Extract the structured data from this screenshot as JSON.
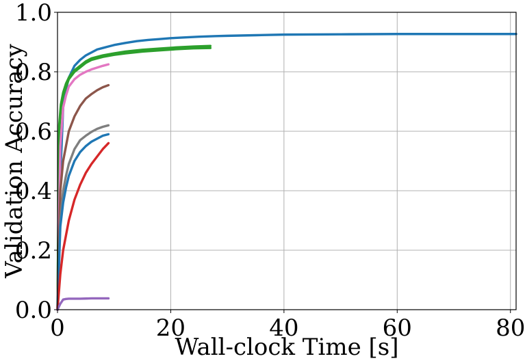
{
  "chart_data": {
    "type": "line",
    "title": "",
    "xlabel": "Wall-clock Time [s]",
    "ylabel": "Validation Accuracy",
    "xlim": [
      0,
      81
    ],
    "ylim": [
      0.0,
      1.0
    ],
    "xticks": [
      0,
      20,
      40,
      60,
      80
    ],
    "yticks": [
      0.0,
      0.2,
      0.4,
      0.6,
      0.8,
      1.0
    ],
    "xtick_labels": [
      "0",
      "20",
      "40",
      "60",
      "80"
    ],
    "ytick_labels": [
      "0.0",
      "0.2",
      "0.4",
      "0.6",
      "0.8",
      "1.0"
    ],
    "grid": true,
    "legend": false,
    "series": [
      {
        "color": "#1f77b4",
        "x": [
          0,
          0.5,
          1,
          1.5,
          2,
          3,
          4,
          5,
          6,
          7,
          8,
          9,
          10,
          12,
          14,
          16,
          18,
          20,
          22,
          25,
          28,
          30,
          35,
          40,
          50,
          60,
          70,
          81
        ],
        "y": [
          0,
          0.45,
          0.68,
          0.74,
          0.78,
          0.82,
          0.84,
          0.855,
          0.865,
          0.875,
          0.88,
          0.885,
          0.89,
          0.897,
          0.903,
          0.907,
          0.91,
          0.913,
          0.915,
          0.918,
          0.92,
          0.921,
          0.923,
          0.925,
          0.926,
          0.927,
          0.927,
          0.927
        ]
      },
      {
        "color": "#2ca02c",
        "x": [
          0,
          0.3,
          0.6,
          1,
          1.5,
          2,
          3,
          4,
          5,
          6,
          8,
          10,
          12,
          15,
          18,
          21,
          24,
          27
        ],
        "y": [
          0,
          0.6,
          0.68,
          0.72,
          0.75,
          0.775,
          0.8,
          0.815,
          0.83,
          0.84,
          0.85,
          0.857,
          0.862,
          0.868,
          0.872,
          0.876,
          0.879,
          0.88
        ]
      },
      {
        "color": "#2ca02c",
        "x": [
          0,
          0.3,
          0.6,
          1,
          1.5,
          2,
          3,
          4,
          5,
          6,
          8,
          10,
          12,
          15,
          18,
          21,
          24,
          27
        ],
        "y": [
          0,
          0.62,
          0.69,
          0.73,
          0.76,
          0.78,
          0.805,
          0.82,
          0.835,
          0.845,
          0.855,
          0.862,
          0.868,
          0.874,
          0.878,
          0.882,
          0.885,
          0.887
        ]
      },
      {
        "color": "#e377c2",
        "x": [
          0,
          0.5,
          1,
          1.5,
          2,
          3,
          4,
          5,
          6,
          7,
          8,
          9
        ],
        "y": [
          0,
          0.55,
          0.68,
          0.72,
          0.75,
          0.775,
          0.79,
          0.8,
          0.808,
          0.814,
          0.82,
          0.825
        ]
      },
      {
        "color": "#8c564b",
        "x": [
          0,
          0.5,
          1,
          1.5,
          2,
          3,
          4,
          5,
          6,
          7,
          8,
          9
        ],
        "y": [
          0,
          0.4,
          0.5,
          0.55,
          0.6,
          0.65,
          0.685,
          0.71,
          0.725,
          0.738,
          0.748,
          0.755
        ]
      },
      {
        "color": "#7f7f7f",
        "x": [
          0,
          0.5,
          1,
          1.5,
          2,
          3,
          4,
          5,
          6,
          7,
          8,
          9
        ],
        "y": [
          0,
          0.3,
          0.4,
          0.45,
          0.49,
          0.54,
          0.57,
          0.585,
          0.598,
          0.608,
          0.615,
          0.62
        ]
      },
      {
        "color": "#1f77b4",
        "x": [
          0,
          0.5,
          1,
          1.5,
          2,
          3,
          4,
          5,
          6,
          7,
          8,
          9
        ],
        "y": [
          0,
          0.28,
          0.36,
          0.41,
          0.45,
          0.5,
          0.53,
          0.55,
          0.565,
          0.575,
          0.585,
          0.59
        ]
      },
      {
        "color": "#d62728",
        "x": [
          0,
          0.5,
          1,
          1.5,
          2,
          3,
          4,
          5,
          6,
          7,
          8,
          9
        ],
        "y": [
          0,
          0.12,
          0.2,
          0.25,
          0.3,
          0.37,
          0.42,
          0.46,
          0.49,
          0.515,
          0.54,
          0.56
        ]
      },
      {
        "color": "#9467bd",
        "x": [
          0,
          0.5,
          1,
          1.5,
          2,
          4,
          6,
          8,
          9
        ],
        "y": [
          0,
          0.02,
          0.034,
          0.036,
          0.037,
          0.037,
          0.038,
          0.038,
          0.038
        ]
      }
    ]
  }
}
